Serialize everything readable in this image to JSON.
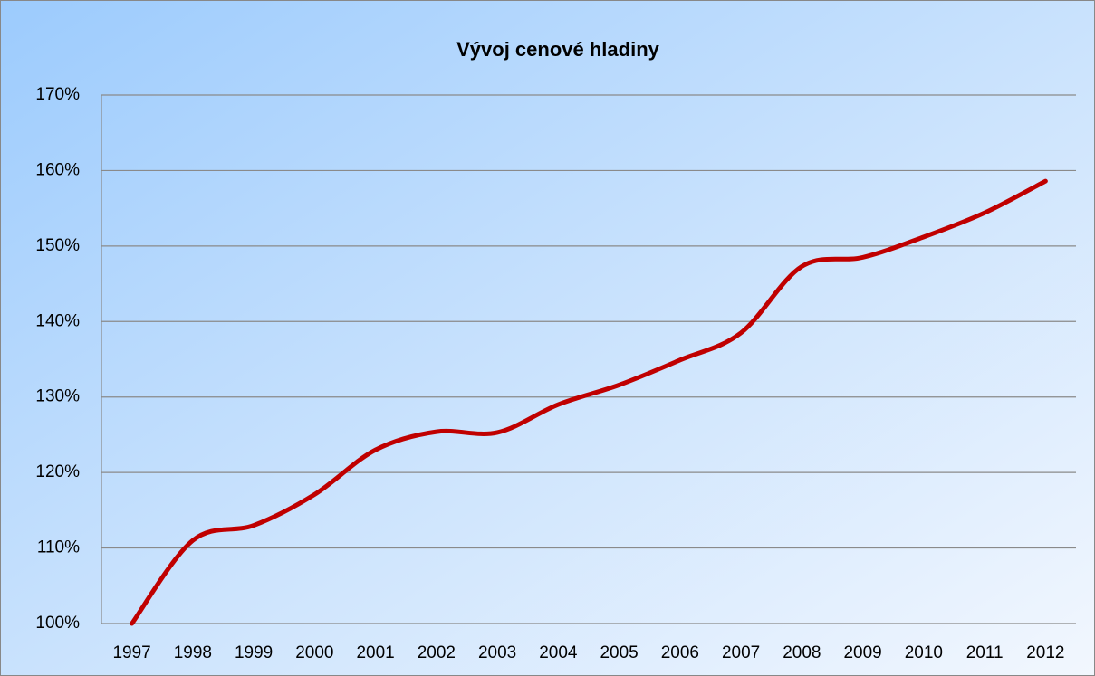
{
  "chart_data": {
    "type": "line",
    "title": "Vývoj cenové hladiny",
    "categories": [
      "1997",
      "1998",
      "1999",
      "2000",
      "2001",
      "2002",
      "2003",
      "2004",
      "2005",
      "2006",
      "2007",
      "2008",
      "2009",
      "2010",
      "2011",
      "2012"
    ],
    "series": [
      {
        "name": "Vývoj cenové hladiny",
        "color": "#c00000",
        "values": [
          100,
          111.0,
          113.0,
          117.1,
          123.0,
          125.4,
          125.3,
          129.0,
          131.6,
          134.9,
          138.5,
          147.3,
          148.5,
          151.2,
          154.4,
          158.6
        ]
      }
    ],
    "ylim": [
      100,
      170
    ],
    "yticks": [
      {
        "value": 100,
        "label": "100%"
      },
      {
        "value": 110,
        "label": "110%"
      },
      {
        "value": 120,
        "label": "120%"
      },
      {
        "value": 130,
        "label": "130%"
      },
      {
        "value": 140,
        "label": "140%"
      },
      {
        "value": 150,
        "label": "150%"
      },
      {
        "value": 160,
        "label": "160%"
      },
      {
        "value": 170,
        "label": "170%"
      }
    ],
    "grid": true,
    "smooth": true
  }
}
